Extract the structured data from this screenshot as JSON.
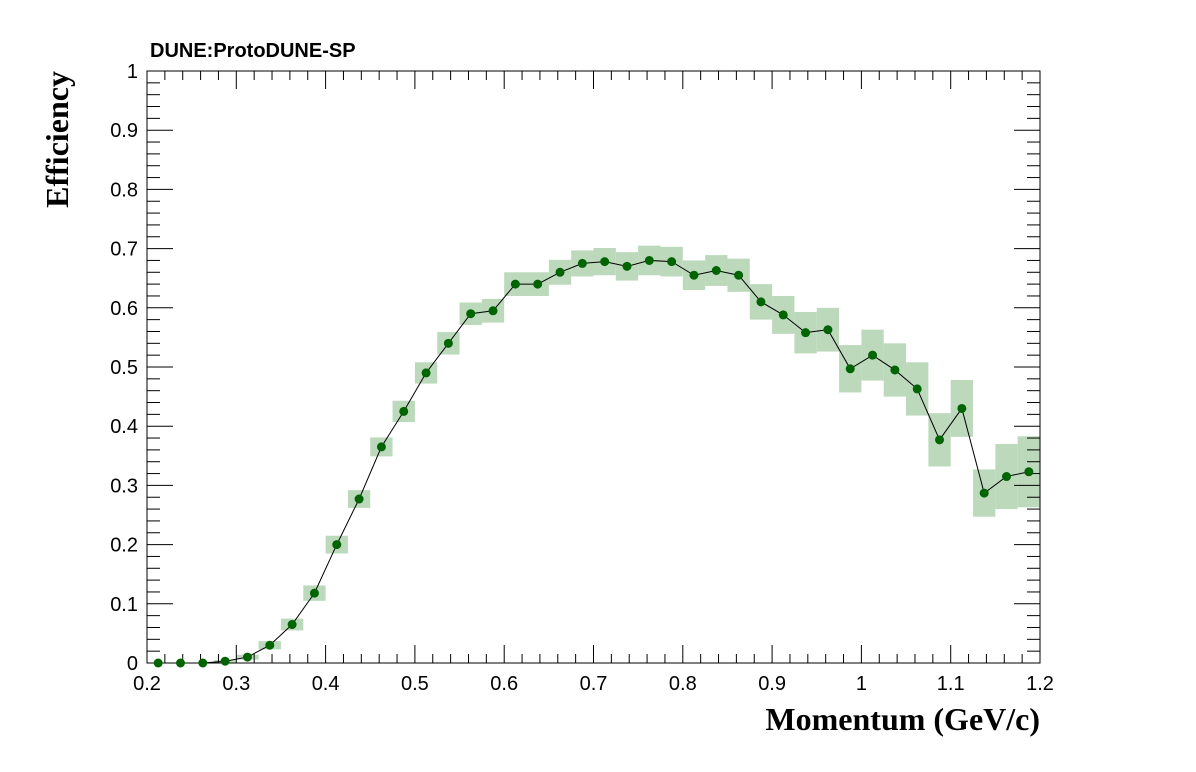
{
  "chart_data": {
    "type": "line",
    "title": "DUNE:ProtoDUNE-SP",
    "xlabel": "Momentum (GeV/c)",
    "ylabel": "Efficiency",
    "xlim": [
      0.2,
      1.2
    ],
    "ylim": [
      0,
      1
    ],
    "x_major_ticks": [
      0.2,
      0.3,
      0.4,
      0.5,
      0.6,
      0.7,
      0.8,
      0.9,
      1.0,
      1.1,
      1.2
    ],
    "x_tick_labels": [
      "0.2",
      "0.3",
      "0.4",
      "0.5",
      "0.6",
      "0.7",
      "0.8",
      "0.9",
      "1",
      "1.1",
      "1.2"
    ],
    "y_major_ticks": [
      0,
      0.1,
      0.2,
      0.3,
      0.4,
      0.5,
      0.6,
      0.7,
      0.8,
      0.9,
      1.0
    ],
    "y_tick_labels": [
      "0",
      "0.1",
      "0.2",
      "0.3",
      "0.4",
      "0.5",
      "0.6",
      "0.7",
      "0.8",
      "0.9",
      "1"
    ],
    "grid": false,
    "bin_width": 0.025,
    "colors": {
      "marker": "#006400",
      "line": "#000000",
      "error_band": "#bcd9bc"
    },
    "series": [
      {
        "x": [
          0.2125,
          0.2375,
          0.2625,
          0.2875,
          0.3125,
          0.3375,
          0.3625,
          0.3875,
          0.4125,
          0.4375,
          0.4625,
          0.4875,
          0.5125,
          0.5375,
          0.5625,
          0.5875,
          0.6125,
          0.6375,
          0.6625,
          0.6875,
          0.7125,
          0.7375,
          0.7625,
          0.7875,
          0.8125,
          0.8375,
          0.8625,
          0.8875,
          0.9125,
          0.9375,
          0.9625,
          0.9875,
          1.0125,
          1.0375,
          1.0625,
          1.0875,
          1.1125,
          1.1375,
          1.1625,
          1.1875
        ],
        "y": [
          0.0,
          0.0,
          0.0,
          0.003,
          0.01,
          0.03,
          0.065,
          0.118,
          0.2,
          0.277,
          0.365,
          0.425,
          0.49,
          0.54,
          0.59,
          0.595,
          0.64,
          0.64,
          0.66,
          0.675,
          0.678,
          0.67,
          0.68,
          0.678,
          0.655,
          0.663,
          0.655,
          0.61,
          0.588,
          0.558,
          0.563,
          0.497,
          0.52,
          0.495,
          0.463,
          0.377,
          0.43,
          0.287,
          0.315,
          0.323
        ],
        "err": [
          0.0,
          0.0,
          0.0,
          0.002,
          0.004,
          0.007,
          0.01,
          0.013,
          0.015,
          0.015,
          0.016,
          0.018,
          0.018,
          0.019,
          0.019,
          0.02,
          0.02,
          0.02,
          0.021,
          0.022,
          0.023,
          0.024,
          0.025,
          0.025,
          0.025,
          0.026,
          0.028,
          0.03,
          0.032,
          0.035,
          0.037,
          0.04,
          0.043,
          0.045,
          0.045,
          0.045,
          0.048,
          0.04,
          0.055,
          0.06
        ]
      }
    ]
  }
}
